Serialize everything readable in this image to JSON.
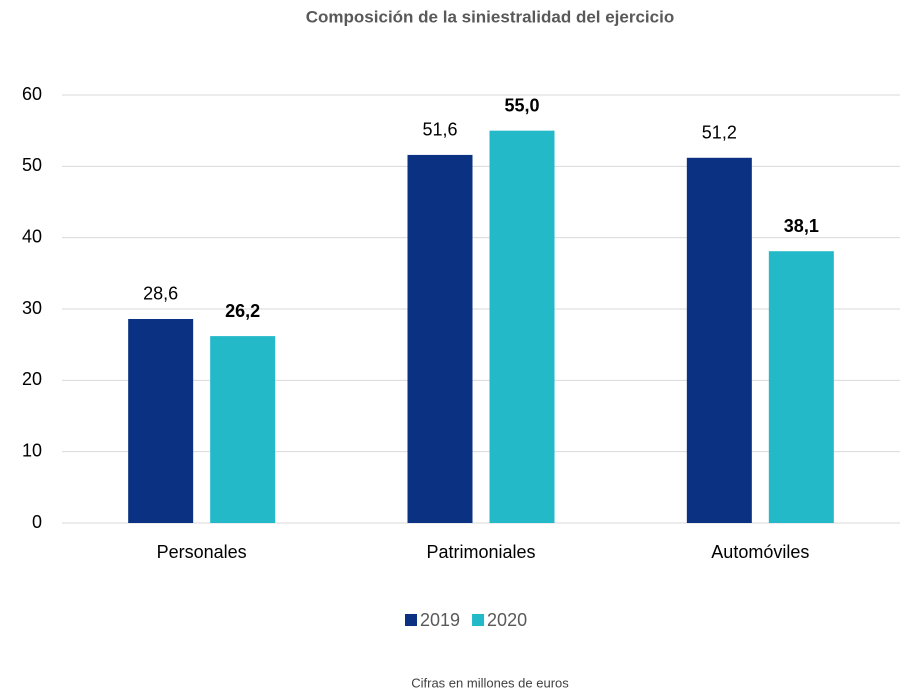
{
  "chart_data": {
    "type": "bar",
    "title": "Composición de la siniestralidad del ejercicio",
    "categories": [
      "Personales",
      "Patrimoniales",
      "Automóviles"
    ],
    "series": [
      {
        "name": "2019",
        "color": "#0b3282",
        "values": [
          28.6,
          51.6,
          51.2
        ],
        "value_labels": [
          "28,6",
          "51,6",
          "51,2"
        ]
      },
      {
        "name": "2020",
        "color": "#23b9c9",
        "values": [
          26.2,
          55.0,
          38.1
        ],
        "value_labels": [
          "26,2",
          "55,0",
          "38,1"
        ]
      }
    ],
    "ylim": [
      0,
      60
    ],
    "yticks": [
      0,
      10,
      20,
      30,
      40,
      50,
      60
    ],
    "grid": true,
    "legend": "bottom",
    "footnote": "Cifras en millones de euros"
  }
}
